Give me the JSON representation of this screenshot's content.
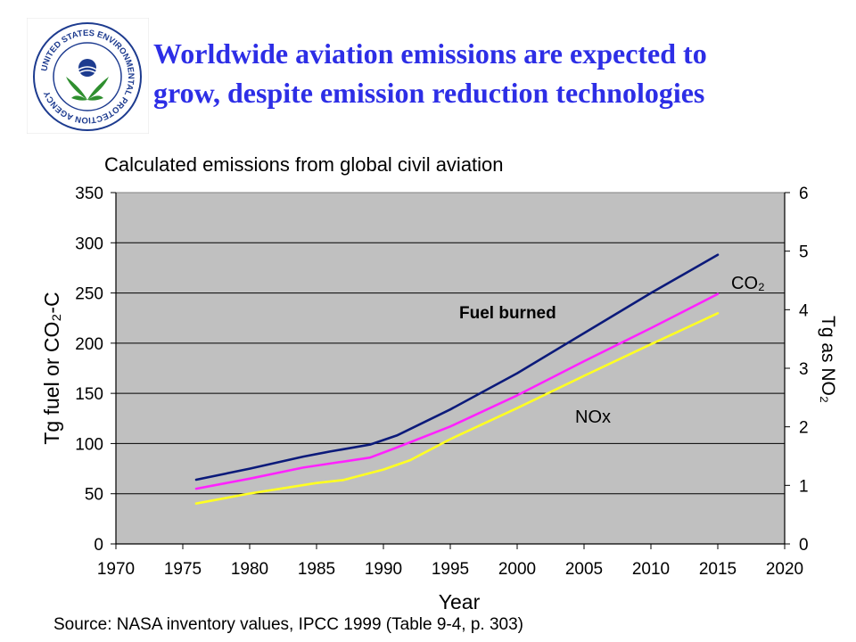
{
  "slide": {
    "title_line1": "Worldwide aviation emissions are expected to",
    "title_line2": "grow, despite emission reduction technologies",
    "logo_text": "UNITED STATES ENVIRONMENTAL PROTECTION AGENCY",
    "source": "Source:  NASA inventory values, IPCC 1999 (Table 9-4, p. 303)"
  },
  "colors": {
    "title": "#2d2ee6",
    "plot_bg": "#c0c0c0",
    "fuel": "#0b1a7a",
    "co2": "#ff22ff",
    "nox": "#ffff22",
    "logo_green": "#2f8f2f",
    "logo_blue": "#1d3b8f"
  },
  "chart_data": {
    "type": "line",
    "title": "Calculated emissions from global civil aviation",
    "xlabel": "Year",
    "ylabel": "Tg fuel or CO₂-C",
    "y2label": "Tg as NO₂",
    "xlim": [
      1970,
      2020
    ],
    "ylim": [
      0,
      350
    ],
    "y2lim": [
      0,
      6
    ],
    "x_ticks": [
      1970,
      1975,
      1980,
      1985,
      1990,
      1995,
      2000,
      2005,
      2010,
      2015,
      2020
    ],
    "y_ticks": [
      0,
      50,
      100,
      150,
      200,
      250,
      300,
      350
    ],
    "y2_ticks": [
      0,
      1,
      2,
      3,
      4,
      5,
      6
    ],
    "grid": true,
    "series": [
      {
        "name": "Fuel burned",
        "axis": "left",
        "color": "#0b1a7a",
        "x": [
          1976,
          1980,
          1984,
          1986,
          1989,
          1991,
          1995,
          2000,
          2005,
          2010,
          2015
        ],
        "y": [
          64,
          75,
          87,
          92,
          99,
          108,
          134,
          170,
          210,
          250,
          288
        ]
      },
      {
        "name": "CO₂",
        "axis": "left",
        "color": "#ff22ff",
        "x": [
          1976,
          1980,
          1984,
          1986,
          1989,
          1991,
          1995,
          2000,
          2005,
          2010,
          2015
        ],
        "y": [
          55,
          65,
          76,
          80,
          86,
          96,
          117,
          148,
          182,
          215,
          249
        ]
      },
      {
        "name": "NOx",
        "axis": "right",
        "color": "#ffff22",
        "x": [
          1976,
          1980,
          1985,
          1987,
          1990,
          1992,
          1995,
          2000,
          2005,
          2010,
          2015
        ],
        "y": [
          0.69,
          0.86,
          1.04,
          1.09,
          1.27,
          1.43,
          1.79,
          2.32,
          2.87,
          3.41,
          3.94
        ]
      }
    ],
    "annotations": {
      "fuel": "Fuel burned",
      "co2": "CO₂",
      "nox": "NOx"
    }
  }
}
